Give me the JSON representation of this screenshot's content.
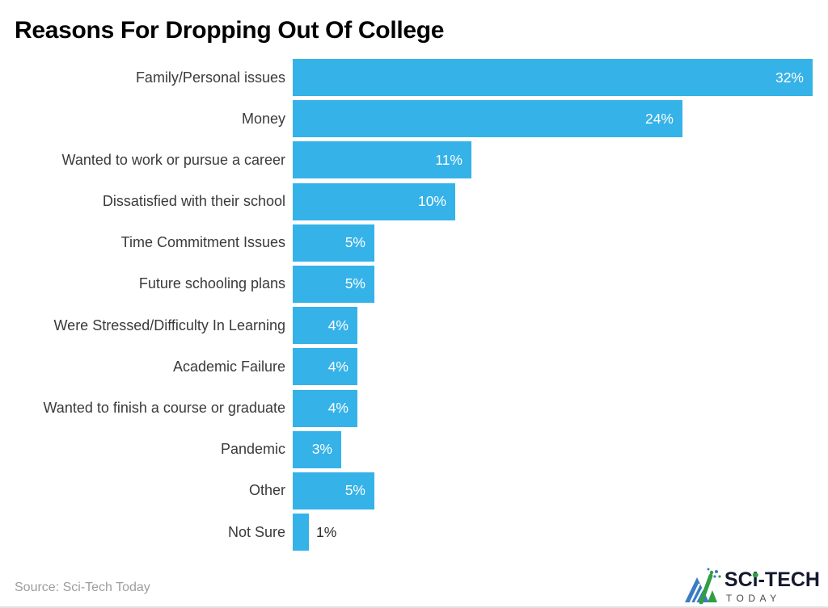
{
  "title": "Reasons For Dropping Out Of College",
  "source": "Source: Sci-Tech Today",
  "logo": {
    "brand_pre": "SC",
    "brand_i": "i",
    "brand_post": "-TECH",
    "brand_sub": "TODAY"
  },
  "colors": {
    "bar": "#35b2e8",
    "value_inside": "#ffffff",
    "value_outside": "#2b2b2b",
    "title": "#000000",
    "category": "#3a3a3a",
    "source": "#9e9e9e",
    "brand_text": "#15182f",
    "brand_sub": "#4b4b4b",
    "icon_blue": "#3b7cc4",
    "icon_green": "#2f9e44",
    "bottom_rule": "#e2e2e2"
  },
  "chart_data": {
    "type": "bar",
    "orientation": "horizontal",
    "title": "Reasons For Dropping Out Of College",
    "categories": [
      "Family/Personal issues",
      "Money",
      "Wanted to work or pursue a career",
      "Dissatisfied with their school",
      "Time Commitment Issues",
      "Future schooling plans",
      "Were Stressed/Difficulty In Learning",
      "Academic Failure",
      "Wanted to finish a course or graduate",
      "Pandemic",
      "Other",
      "Not Sure"
    ],
    "values": [
      32,
      24,
      11,
      10,
      5,
      5,
      4,
      4,
      4,
      3,
      5,
      1
    ],
    "value_labels": [
      "32%",
      "24%",
      "11%",
      "10%",
      "5%",
      "5%",
      "4%",
      "4%",
      "4%",
      "3%",
      "5%",
      "1%"
    ],
    "unit": "%",
    "xlim": [
      0,
      33
    ],
    "grid": false,
    "legend": false,
    "bar_color": "#35b2e8",
    "value_label_position": "inside-end, outside for smallest bar"
  }
}
